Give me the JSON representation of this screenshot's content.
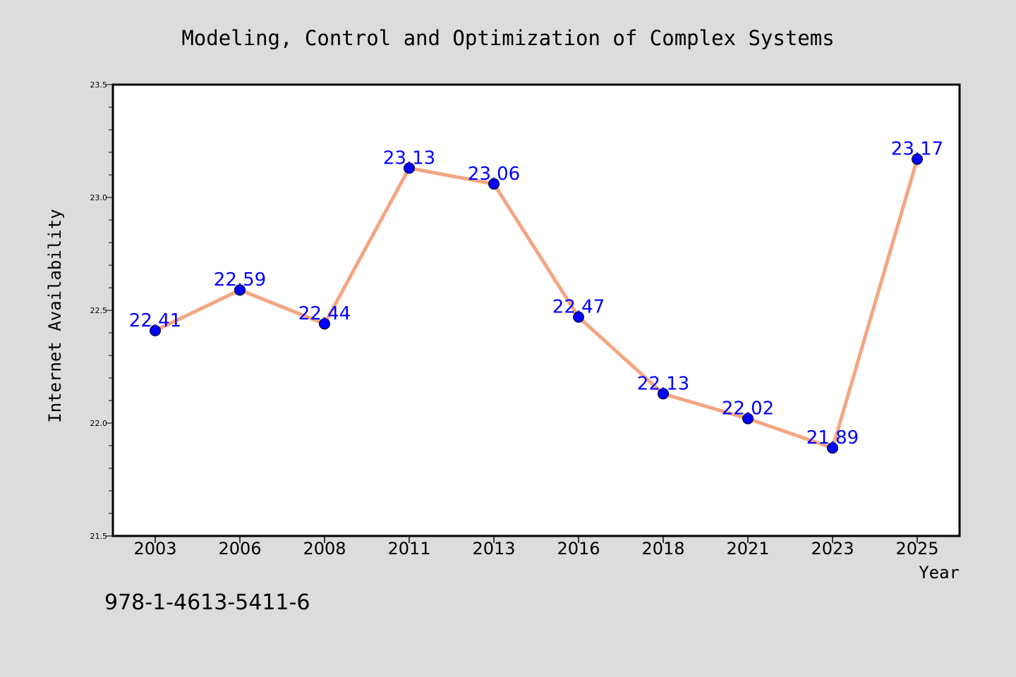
{
  "chart_data": {
    "type": "line",
    "title": "Modeling, Control and Optimization of Complex Systems",
    "xlabel": "Year",
    "ylabel": "Internet Availability",
    "categories": [
      "2003",
      "2006",
      "2008",
      "2011",
      "2013",
      "2016",
      "2018",
      "2021",
      "2023",
      "2025"
    ],
    "series": [
      {
        "values": [
          22.41,
          22.59,
          22.44,
          23.13,
          23.06,
          22.47,
          22.13,
          22.02,
          21.89,
          23.17
        ],
        "line_color": "#f4a582",
        "marker_color": "#0000ff",
        "label_color": "#0000ff"
      }
    ],
    "data_labels": [
      "22.41",
      "22.59",
      "22.44",
      "23.13",
      "23.06",
      "22.47",
      "22.13",
      "22.02",
      "21.89",
      "23.17"
    ],
    "ylim": [
      21.5,
      23.5
    ],
    "yticks": [
      "21.5",
      "22.0",
      "22.5",
      "23.0",
      "23.5"
    ],
    "grid": false,
    "legend": "none"
  },
  "footer": {
    "isbn": "978-1-4613-5411-6"
  },
  "colors": {
    "background": "#dcdcdc",
    "plot_area": "#ffffff",
    "text": "#000000"
  }
}
